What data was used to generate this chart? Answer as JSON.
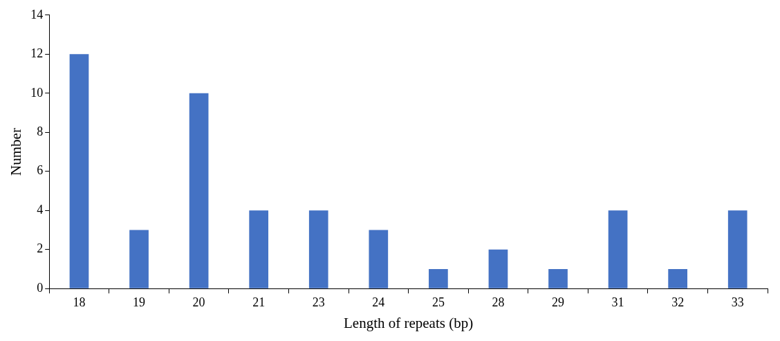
{
  "chart_data": {
    "type": "bar",
    "xlabel": "Length of repeats (bp)",
    "ylabel": "Number",
    "categories": [
      "18",
      "19",
      "20",
      "21",
      "23",
      "24",
      "25",
      "28",
      "29",
      "31",
      "32",
      "33"
    ],
    "values": [
      12,
      3,
      10,
      4,
      4,
      3,
      1,
      2,
      1,
      4,
      1,
      4
    ],
    "color": "#4472c4",
    "ylim": [
      0,
      14
    ],
    "yticks": [
      0,
      2,
      4,
      6,
      8,
      10,
      12,
      14
    ],
    "grid": false,
    "legend": false
  }
}
